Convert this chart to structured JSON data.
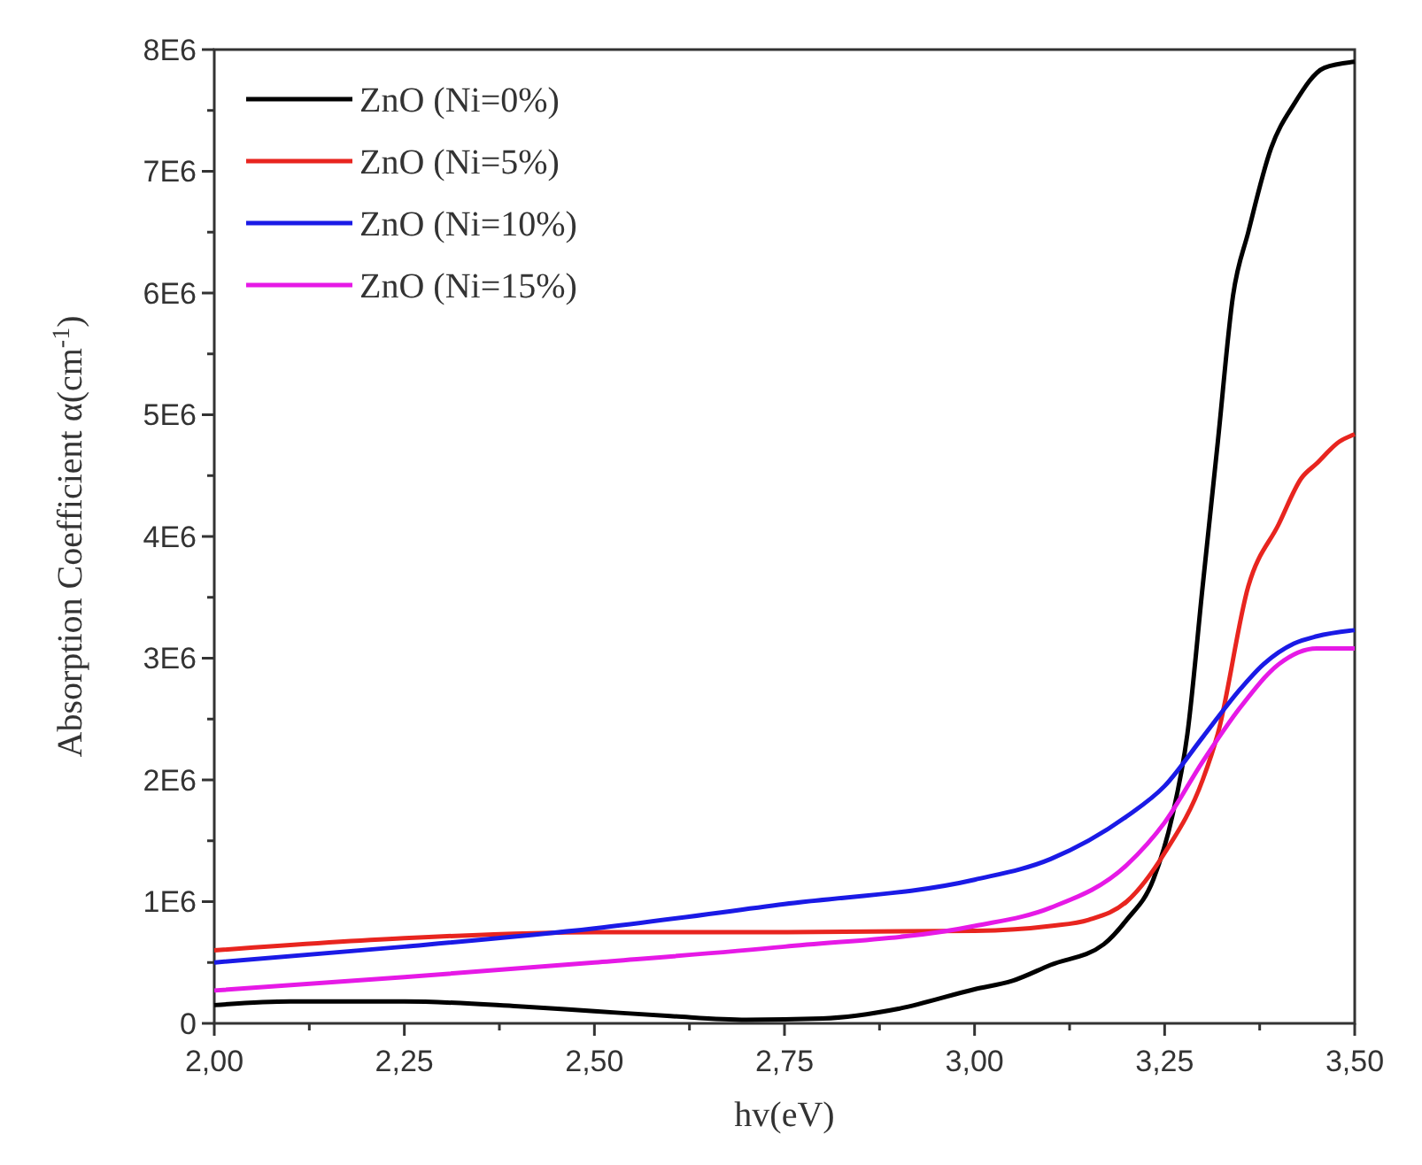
{
  "chart_data": {
    "type": "line",
    "xlabel": "hv(eV)",
    "ylabel": "Absorption Coefficient α(cm$^{-1}$)",
    "xlim": [
      2.0,
      3.5
    ],
    "xticks": [
      {
        "value": 2.0,
        "label": "2,00"
      },
      {
        "value": 2.125,
        "label": null
      },
      {
        "value": 2.25,
        "label": "2,25"
      },
      {
        "value": 2.375,
        "label": null
      },
      {
        "value": 2.5,
        "label": "2,50"
      },
      {
        "value": 2.625,
        "label": null
      },
      {
        "value": 2.75,
        "label": "2,75"
      },
      {
        "value": 2.875,
        "label": null
      },
      {
        "value": 3.0,
        "label": "3,00"
      },
      {
        "value": 3.125,
        "label": null
      },
      {
        "value": 3.25,
        "label": "3,25"
      },
      {
        "value": 3.375,
        "label": null
      },
      {
        "value": 3.5,
        "label": "3,50"
      }
    ],
    "ylim": [
      0,
      8000000
    ],
    "yticks": [
      {
        "value": 0,
        "label": "0"
      },
      {
        "value": 500000,
        "label": null
      },
      {
        "value": 1000000,
        "label": "1E6"
      },
      {
        "value": 1500000,
        "label": null
      },
      {
        "value": 2000000,
        "label": "2E6"
      },
      {
        "value": 2500000,
        "label": null
      },
      {
        "value": 3000000,
        "label": "3E6"
      },
      {
        "value": 3500000,
        "label": null
      },
      {
        "value": 4000000,
        "label": "4E6"
      },
      {
        "value": 4500000,
        "label": null
      },
      {
        "value": 5000000,
        "label": "5E6"
      },
      {
        "value": 5500000,
        "label": null
      },
      {
        "value": 6000000,
        "label": "6E6"
      },
      {
        "value": 6500000,
        "label": null
      },
      {
        "value": 7000000,
        "label": "7E6"
      },
      {
        "value": 7500000,
        "label": null
      },
      {
        "value": 8000000,
        "label": "8E6"
      }
    ],
    "grid": false,
    "legend": "top left",
    "line_style": "solid",
    "series": [
      {
        "name": "ZnO (Ni=0%)",
        "color": "#000000",
        "x": [
          2.0,
          2.1,
          2.25,
          2.4,
          2.5,
          2.6,
          2.7,
          2.8,
          2.9,
          3.0,
          3.05,
          3.1,
          3.17,
          3.2,
          3.235,
          3.26,
          3.28,
          3.3,
          3.32,
          3.34,
          3.36,
          3.39,
          3.42,
          3.46,
          3.5
        ],
        "values": [
          150000,
          180000,
          180000,
          140000,
          100000,
          60000,
          30000,
          40000,
          120000,
          280000,
          350000,
          480000,
          650000,
          850000,
          1180000,
          1700000,
          2380000,
          3590000,
          4780000,
          5980000,
          6500000,
          7190000,
          7550000,
          7850000,
          7900000
        ]
      },
      {
        "name": "ZnO (Ni=5%)",
        "color": "#e8251f",
        "x": [
          2.0,
          2.25,
          2.5,
          2.75,
          3.0,
          3.1,
          3.15,
          3.2,
          3.25,
          3.3,
          3.32,
          3.36,
          3.4,
          3.43,
          3.45,
          3.48,
          3.5
        ],
        "values": [
          600000,
          700000,
          750000,
          750000,
          760000,
          800000,
          850000,
          1000000,
          1400000,
          2000000,
          2380000,
          3590000,
          4100000,
          4480000,
          4600000,
          4780000,
          4840000
        ]
      },
      {
        "name": "ZnO (Ni=10%)",
        "color": "#1a1ae6",
        "x": [
          2.0,
          2.25,
          2.5,
          2.75,
          3.0,
          3.1,
          3.2,
          3.25,
          3.3,
          3.35,
          3.38,
          3.42,
          3.45,
          3.5
        ],
        "values": [
          500000,
          630000,
          780000,
          980000,
          1180000,
          1350000,
          1700000,
          1950000,
          2350000,
          2750000,
          2950000,
          3120000,
          3180000,
          3230000
        ]
      },
      {
        "name": "ZnO (Ni=15%)",
        "color": "#e619e6",
        "x": [
          2.0,
          2.25,
          2.5,
          2.75,
          3.0,
          3.1,
          3.2,
          3.25,
          3.3,
          3.35,
          3.4,
          3.45,
          3.5
        ],
        "values": [
          270000,
          380000,
          500000,
          630000,
          800000,
          950000,
          1300000,
          1650000,
          2150000,
          2600000,
          2950000,
          3080000,
          3080000
        ]
      }
    ]
  }
}
